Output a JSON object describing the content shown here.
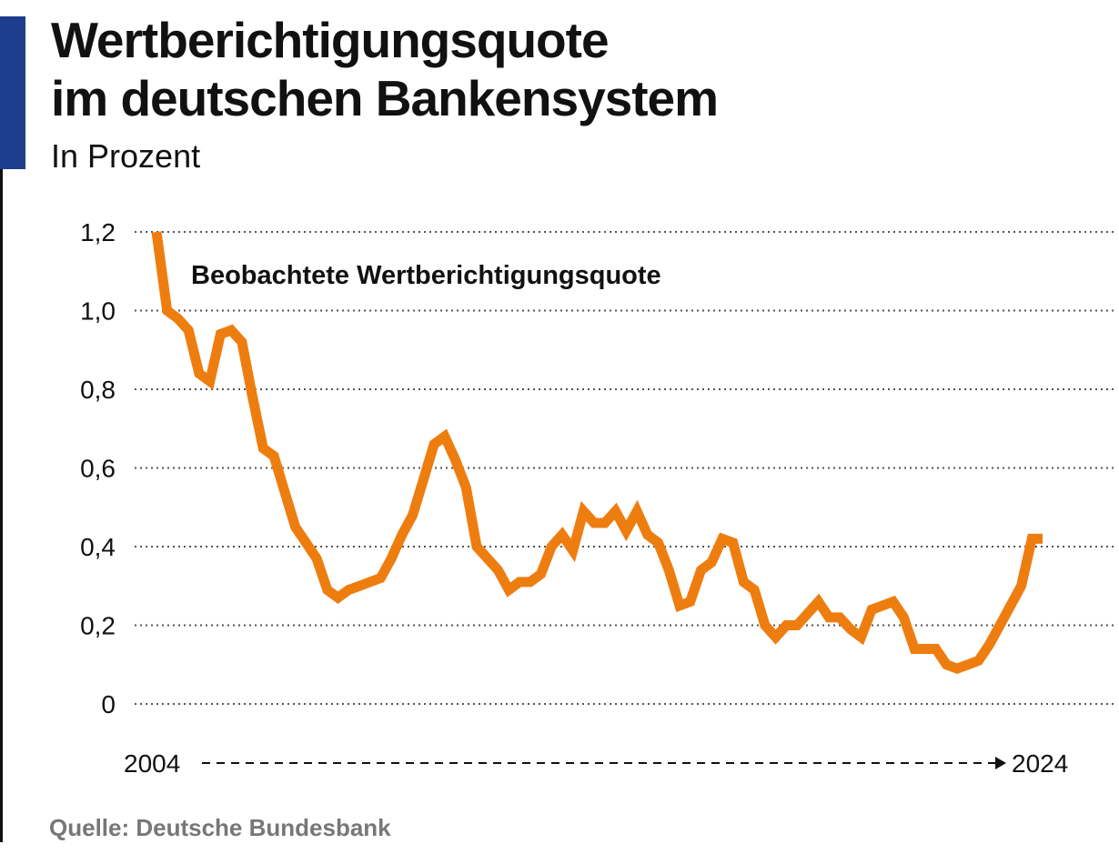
{
  "header": {
    "title_line1": "Wertberichtigungsquote",
    "title_line2": "im deutschen Bankensystem",
    "subtitle": "In Prozent"
  },
  "source": "Quelle: Deutsche Bundesbank",
  "colors": {
    "accent": "#1d3c8c",
    "line": "#ee7d10",
    "grid": "#555555",
    "source_text": "#777777"
  },
  "chart_data": {
    "type": "line",
    "title": "Wertberichtigungsquote im deutschen Bankensystem",
    "subtitle": "In Prozent",
    "series": [
      {
        "name": "Beobachtete Wertberichtigungsquote",
        "values": [
          1.2,
          1.0,
          0.98,
          0.95,
          0.84,
          0.82,
          0.94,
          0.95,
          0.92,
          0.78,
          0.65,
          0.63,
          0.54,
          0.45,
          0.41,
          0.37,
          0.29,
          0.27,
          0.29,
          0.3,
          0.31,
          0.32,
          0.37,
          0.43,
          0.48,
          0.57,
          0.66,
          0.68,
          0.62,
          0.55,
          0.4,
          0.37,
          0.34,
          0.29,
          0.31,
          0.31,
          0.33,
          0.4,
          0.43,
          0.39,
          0.49,
          0.46,
          0.46,
          0.49,
          0.44,
          0.49,
          0.43,
          0.41,
          0.34,
          0.25,
          0.26,
          0.34,
          0.36,
          0.42,
          0.41,
          0.31,
          0.29,
          0.2,
          0.17,
          0.2,
          0.2,
          0.23,
          0.26,
          0.22,
          0.22,
          0.19,
          0.17,
          0.24,
          0.25,
          0.26,
          0.22,
          0.14,
          0.14,
          0.14,
          0.1,
          0.09,
          0.1,
          0.11,
          0.15,
          0.2,
          0.25,
          0.3,
          0.42,
          0.42
        ]
      }
    ],
    "x_start_label": "2004",
    "x_end_label": "2024",
    "ylim": [
      0,
      1.2
    ],
    "y_ticks": [
      "0",
      "0,2",
      "0,4",
      "0,6",
      "0,8",
      "1,0",
      "1,2"
    ],
    "grid": "dotted horizontal",
    "annotation": "Beobachtete Wertberichtigungsquote"
  }
}
